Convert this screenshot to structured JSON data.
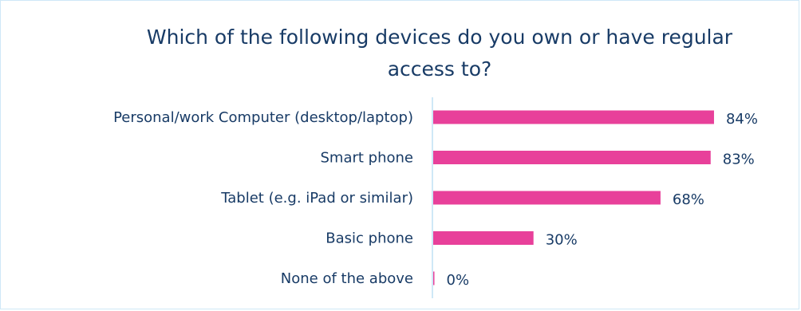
{
  "chart_data": {
    "type": "bar",
    "orientation": "horizontal",
    "title": "Which of the following devices do you own or have regular access to?",
    "categories": [
      "Personal/work Computer (desktop/laptop)",
      "Smart phone",
      "Tablet (e.g. iPad or similar)",
      "Basic phone",
      "None of the above"
    ],
    "values": [
      84,
      83,
      68,
      30,
      0
    ],
    "value_labels": [
      "84%",
      "83%",
      "68%",
      "30%",
      "0%"
    ],
    "xlim": [
      0,
      100
    ],
    "grid": false,
    "bar_color": "#e8409a",
    "axis_color": "#cfe8f7",
    "text_color": "#183b66"
  }
}
